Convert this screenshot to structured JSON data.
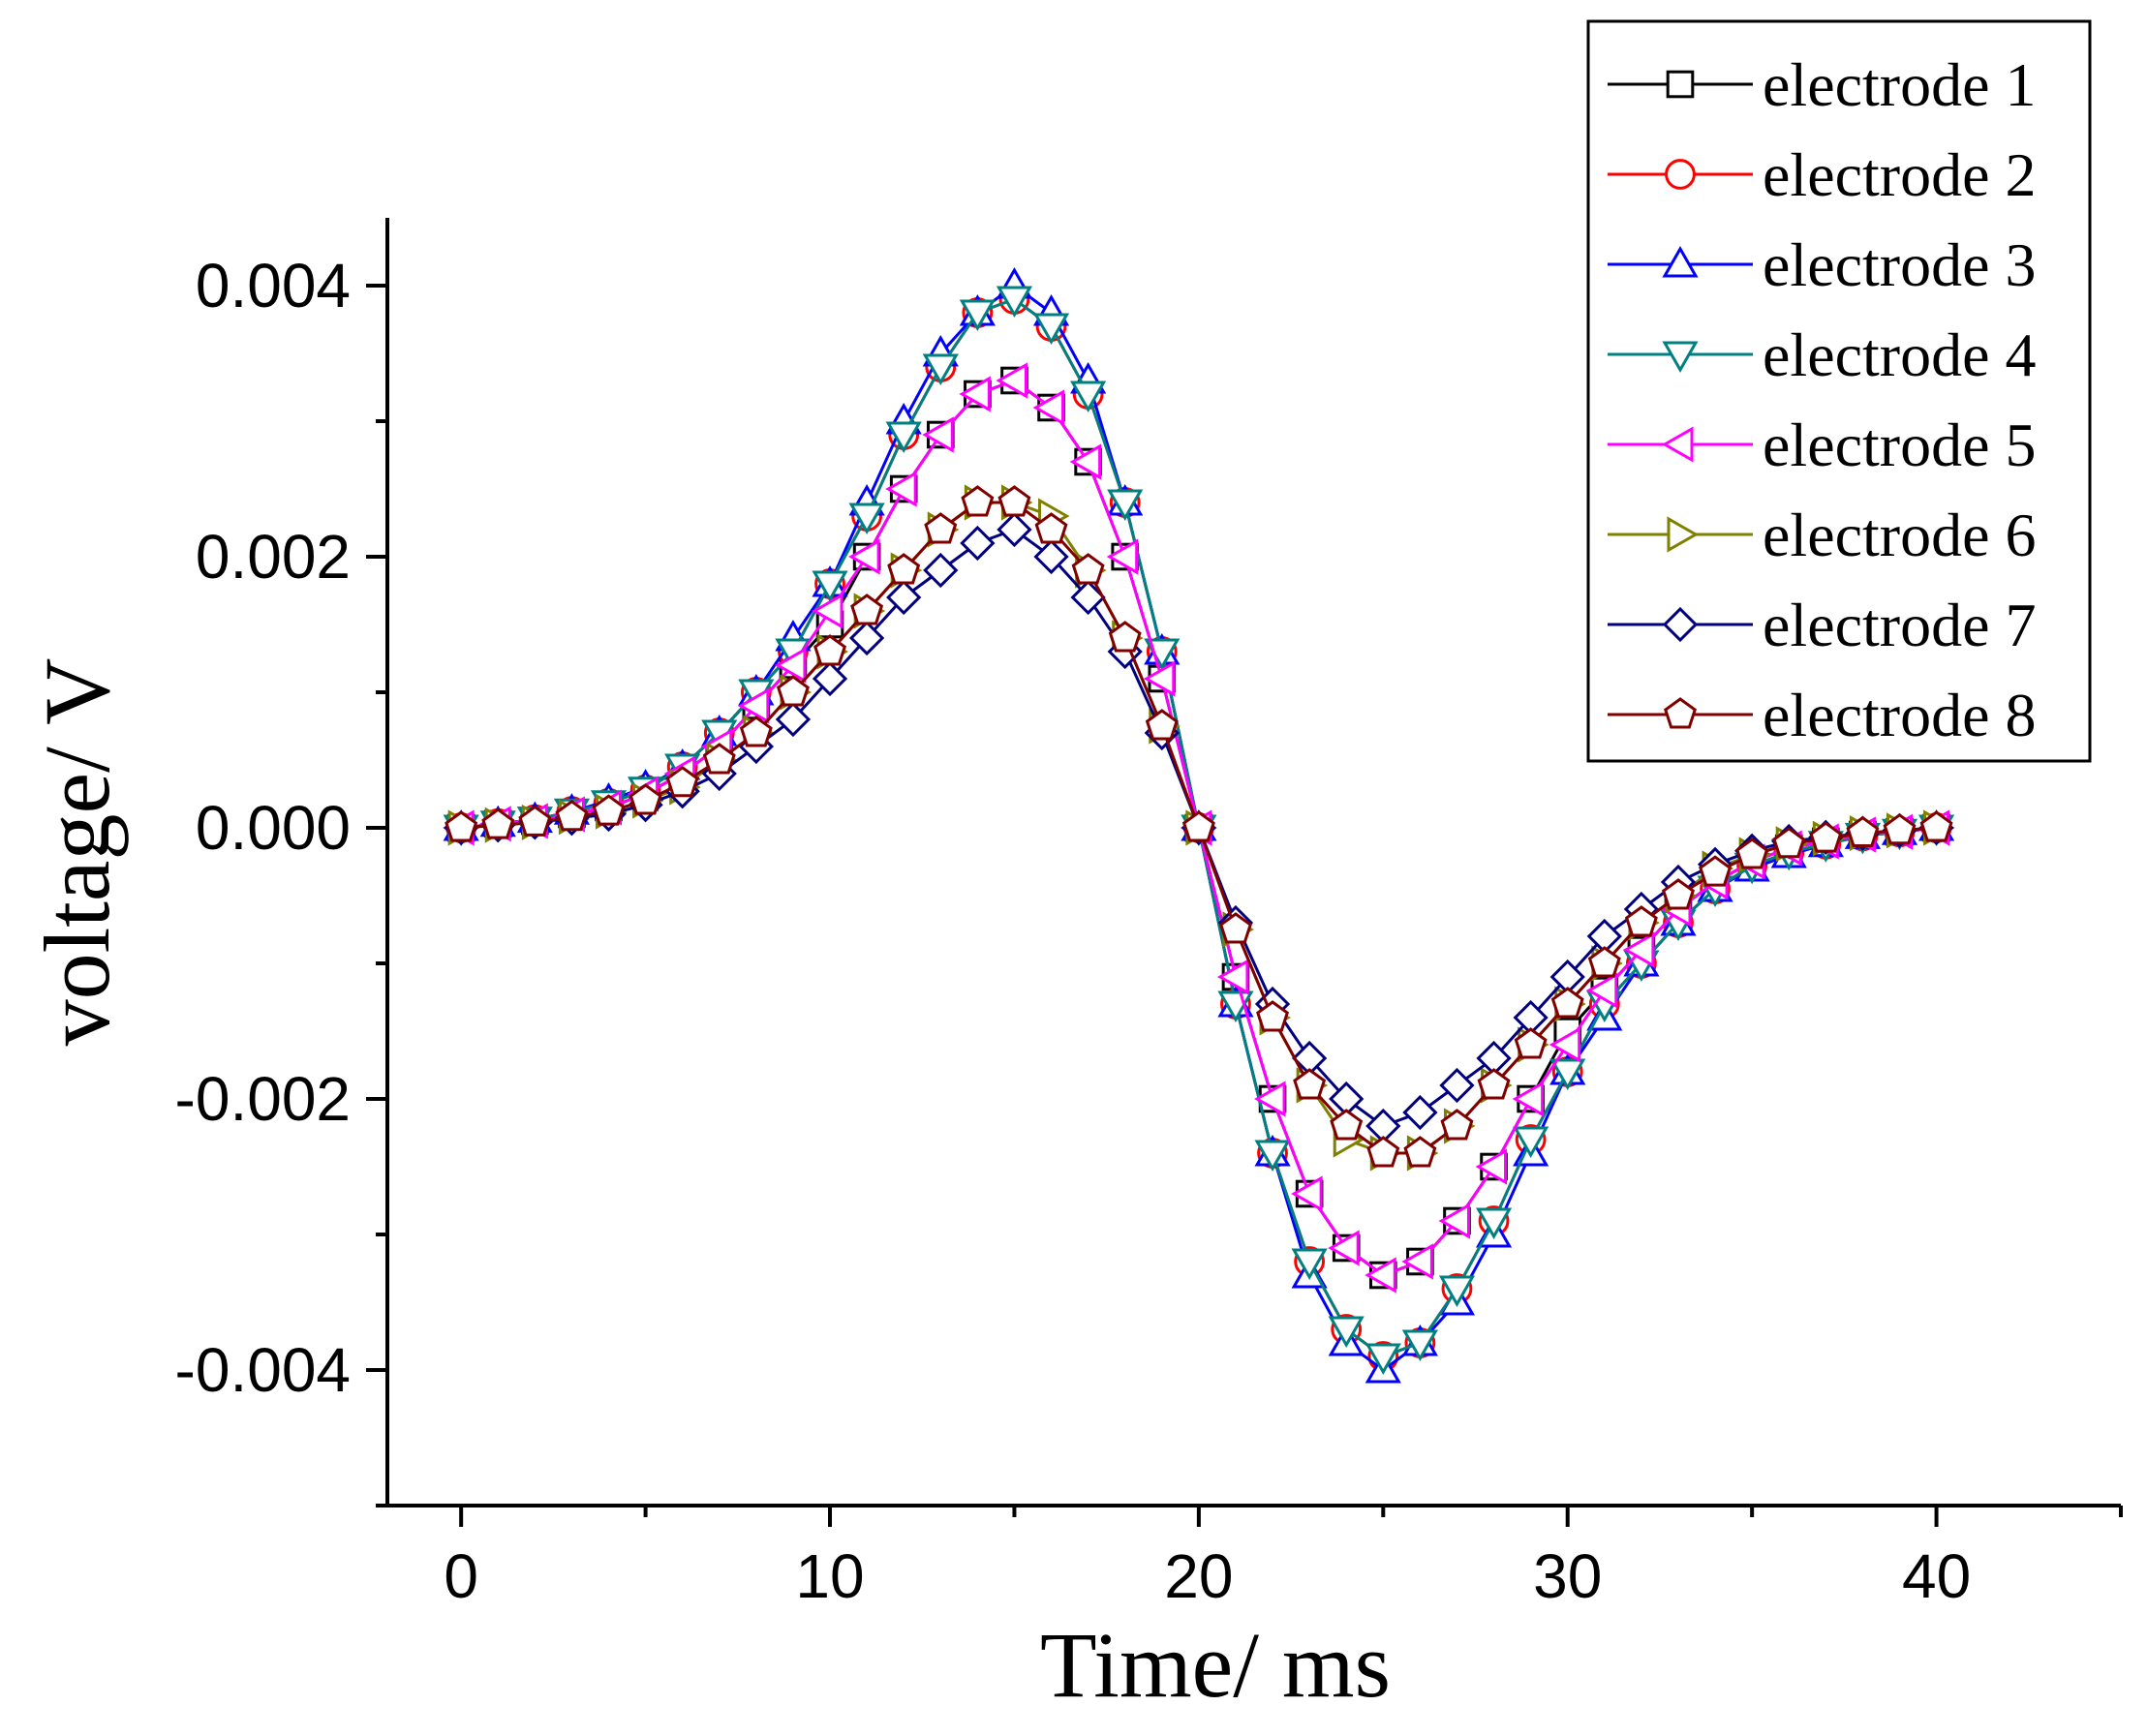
{
  "chart_data": {
    "type": "line",
    "xlabel": "Time/ ms",
    "ylabel": "voltage/ V",
    "xlim": [
      -2,
      45
    ],
    "ylim": [
      -0.005,
      0.0045
    ],
    "xticks": [
      0,
      10,
      20,
      30,
      40
    ],
    "yticks": [
      -0.004,
      -0.002,
      0.0,
      0.002,
      0.004
    ],
    "xtick_labels": [
      "0",
      "10",
      "20",
      "30",
      "40"
    ],
    "ytick_labels": [
      "-0.004",
      "-0.002",
      "0.000",
      "0.002",
      "0.004"
    ],
    "grid": false,
    "legend_position": "top-right",
    "x": [
      0,
      1,
      2,
      3,
      4,
      5,
      6,
      7,
      8,
      9,
      10,
      11,
      12,
      13,
      14,
      15,
      16,
      17,
      18,
      19,
      20,
      21,
      22,
      23,
      24,
      25,
      26,
      27,
      28,
      29,
      30,
      31,
      32,
      33,
      34,
      35,
      36,
      37,
      38,
      39,
      40
    ],
    "series": [
      {
        "name": "electrode 1",
        "color": "#000000",
        "marker": "square",
        "values": [
          0,
          3e-05,
          5e-05,
          0.0001,
          0.00015,
          0.00025,
          0.0004,
          0.0006,
          0.0009,
          0.0012,
          0.0015,
          0.002,
          0.0025,
          0.0029,
          0.0032,
          0.0033,
          0.0031,
          0.0027,
          0.002,
          0.0011,
          0,
          -0.0011,
          -0.002,
          -0.0027,
          -0.0031,
          -0.0033,
          -0.0032,
          -0.0029,
          -0.0025,
          -0.002,
          -0.0015,
          -0.0012,
          -0.0009,
          -0.0006,
          -0.0004,
          -0.00025,
          -0.00015,
          -0.0001,
          -5e-05,
          -3e-05,
          0
        ]
      },
      {
        "name": "electrode 2",
        "color": "#ff0000",
        "marker": "circle",
        "values": [
          0,
          3e-05,
          6e-05,
          0.00012,
          0.00018,
          0.00028,
          0.00045,
          0.0007,
          0.001,
          0.0013,
          0.0018,
          0.0023,
          0.0029,
          0.0034,
          0.0038,
          0.0039,
          0.0037,
          0.0032,
          0.0024,
          0.0013,
          0,
          -0.0013,
          -0.0024,
          -0.0032,
          -0.0037,
          -0.0039,
          -0.0038,
          -0.0034,
          -0.0029,
          -0.0023,
          -0.0018,
          -0.0013,
          -0.001,
          -0.0007,
          -0.00045,
          -0.00028,
          -0.00018,
          -0.00012,
          -6e-05,
          -3e-05,
          0
        ]
      },
      {
        "name": "electrode 3",
        "color": "#0000ff",
        "marker": "triangle-up",
        "values": [
          0,
          3e-05,
          6e-05,
          0.00012,
          0.0002,
          0.0003,
          0.00045,
          0.0007,
          0.001,
          0.0014,
          0.0018,
          0.0024,
          0.003,
          0.0035,
          0.0038,
          0.004,
          0.0038,
          0.0033,
          0.0024,
          0.0013,
          0,
          -0.0013,
          -0.0024,
          -0.0033,
          -0.0038,
          -0.004,
          -0.0038,
          -0.0035,
          -0.003,
          -0.0024,
          -0.0018,
          -0.0014,
          -0.001,
          -0.0007,
          -0.00045,
          -0.0003,
          -0.0002,
          -0.00012,
          -6e-05,
          -3e-05,
          0
        ]
      },
      {
        "name": "electrode 4",
        "color": "#008080",
        "marker": "triangle-down",
        "values": [
          0,
          3e-05,
          6e-05,
          0.00012,
          0.00018,
          0.00028,
          0.00045,
          0.0007,
          0.001,
          0.0013,
          0.0018,
          0.0023,
          0.0029,
          0.0034,
          0.0038,
          0.0039,
          0.0037,
          0.0032,
          0.0024,
          0.0013,
          0,
          -0.0013,
          -0.0024,
          -0.0032,
          -0.0037,
          -0.0039,
          -0.0038,
          -0.0034,
          -0.0029,
          -0.0023,
          -0.0018,
          -0.0013,
          -0.001,
          -0.0007,
          -0.00045,
          -0.00028,
          -0.00018,
          -0.00012,
          -6e-05,
          -3e-05,
          0
        ]
      },
      {
        "name": "electrode 5",
        "color": "#ff00ff",
        "marker": "triangle-left",
        "values": [
          0,
          3e-05,
          5e-05,
          0.0001,
          0.00015,
          0.00025,
          0.0004,
          0.0006,
          0.0009,
          0.0012,
          0.0016,
          0.002,
          0.0025,
          0.0029,
          0.0032,
          0.0033,
          0.0031,
          0.0027,
          0.002,
          0.0011,
          0,
          -0.0011,
          -0.002,
          -0.0027,
          -0.0031,
          -0.0033,
          -0.0032,
          -0.0029,
          -0.0025,
          -0.002,
          -0.0016,
          -0.0012,
          -0.0009,
          -0.0006,
          -0.0004,
          -0.00025,
          -0.00015,
          -0.0001,
          -5e-05,
          -3e-05,
          0
        ]
      },
      {
        "name": "electrode 6",
        "color": "#808000",
        "marker": "triangle-right",
        "values": [
          0,
          2e-05,
          4e-05,
          8e-05,
          0.00012,
          0.0002,
          0.0003,
          0.0005,
          0.0007,
          0.001,
          0.0013,
          0.0016,
          0.0019,
          0.0022,
          0.0024,
          0.0024,
          0.0023,
          0.0019,
          0.0014,
          0.00075,
          0,
          -0.00075,
          -0.0014,
          -0.0019,
          -0.0023,
          -0.0024,
          -0.0024,
          -0.0022,
          -0.0019,
          -0.0016,
          -0.0013,
          -0.001,
          -0.0007,
          -0.0005,
          -0.0003,
          -0.0002,
          -0.00012,
          -8e-05,
          -4e-05,
          -2e-05,
          0
        ]
      },
      {
        "name": "electrode 7",
        "color": "#000080",
        "marker": "diamond",
        "values": [
          0,
          2e-05,
          4e-05,
          7e-05,
          0.0001,
          0.00017,
          0.00027,
          0.0004,
          0.0006,
          0.0008,
          0.0011,
          0.0014,
          0.0017,
          0.0019,
          0.0021,
          0.0022,
          0.002,
          0.0017,
          0.0013,
          0.0007,
          0,
          -0.0007,
          -0.0013,
          -0.0017,
          -0.002,
          -0.0022,
          -0.0021,
          -0.0019,
          -0.0017,
          -0.0014,
          -0.0011,
          -0.0008,
          -0.0006,
          -0.0004,
          -0.00027,
          -0.00017,
          -0.0001,
          -7e-05,
          -4e-05,
          -2e-05,
          0
        ]
      },
      {
        "name": "electrode 8",
        "color": "#800000",
        "marker": "pentagon",
        "values": [
          0,
          2e-05,
          4e-05,
          8e-05,
          0.00012,
          0.0002,
          0.00033,
          0.0005,
          0.0007,
          0.001,
          0.0013,
          0.0016,
          0.0019,
          0.0022,
          0.0024,
          0.0024,
          0.0022,
          0.0019,
          0.0014,
          0.00075,
          0,
          -0.00075,
          -0.0014,
          -0.0019,
          -0.0022,
          -0.0024,
          -0.0024,
          -0.0022,
          -0.0019,
          -0.0016,
          -0.0013,
          -0.001,
          -0.0007,
          -0.0005,
          -0.00033,
          -0.0002,
          -0.00012,
          -8e-05,
          -4e-05,
          -2e-05,
          0
        ]
      }
    ]
  }
}
